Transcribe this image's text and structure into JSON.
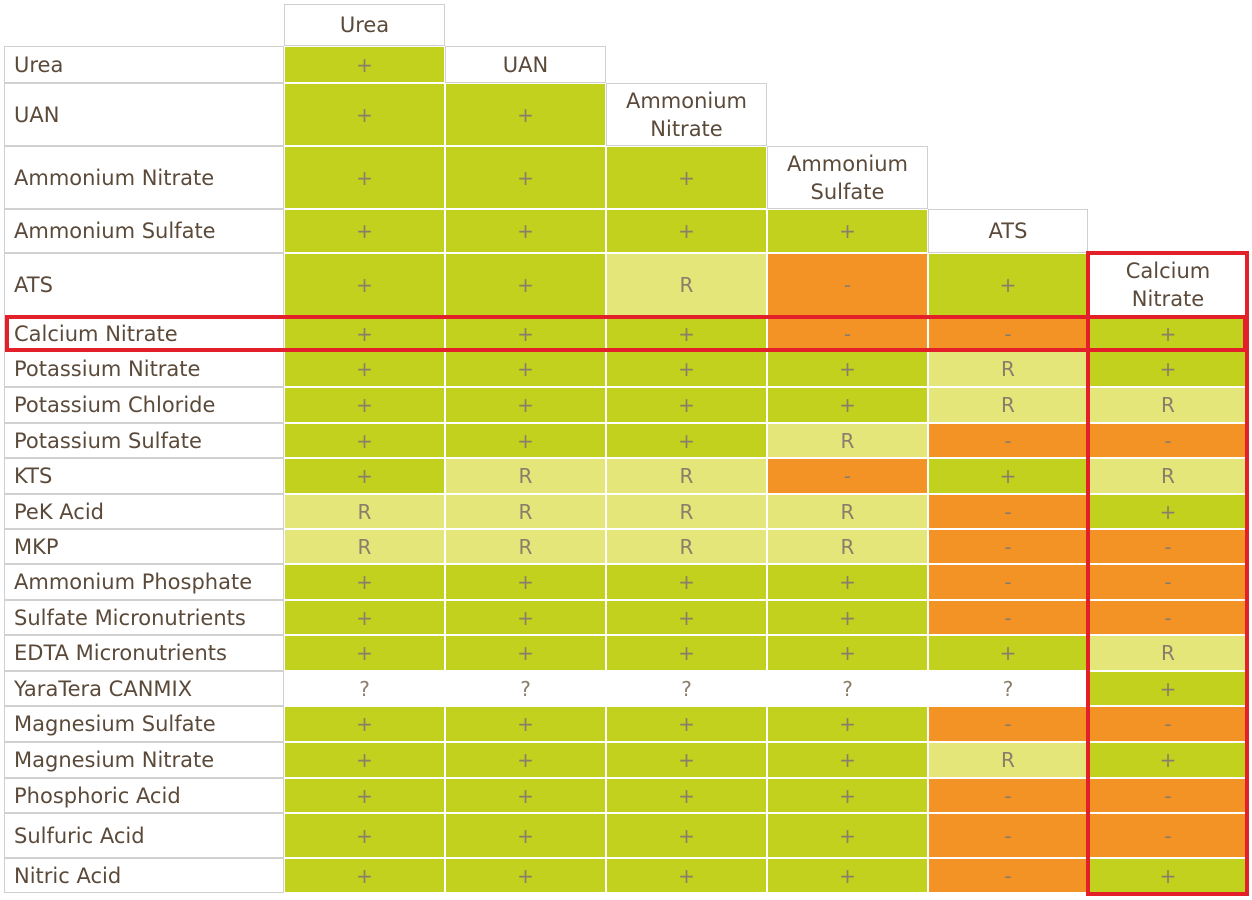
{
  "columns": [
    "Urea",
    "UAN",
    "Ammonium Nitrate",
    "Ammonium Sulfate",
    "ATS",
    "Calcium Nitrate"
  ],
  "colors": {
    "+": "#c2d01e",
    "R": "#e4e67a",
    "-": "#f39325",
    "?": "#ffffff"
  },
  "rows": [
    {
      "label": "Urea",
      "cells": [
        "+"
      ]
    },
    {
      "label": "UAN",
      "cells": [
        "+",
        "+"
      ]
    },
    {
      "label": "Ammonium Nitrate",
      "cells": [
        "+",
        "+",
        "+"
      ]
    },
    {
      "label": "Ammonium Sulfate",
      "cells": [
        "+",
        "+",
        "+",
        "+"
      ]
    },
    {
      "label": "ATS",
      "cells": [
        "+",
        "+",
        "R",
        "-",
        "+"
      ]
    },
    {
      "label": "Calcium Nitrate",
      "cells": [
        "+",
        "+",
        "+",
        "-",
        "-",
        "+"
      ]
    },
    {
      "label": "Potassium Nitrate",
      "cells": [
        "+",
        "+",
        "+",
        "+",
        "R",
        "+"
      ]
    },
    {
      "label": "Potassium Chloride",
      "cells": [
        "+",
        "+",
        "+",
        "+",
        "R",
        "R"
      ]
    },
    {
      "label": "Potassium Sulfate",
      "cells": [
        "+",
        "+",
        "+",
        "R",
        "-",
        "-"
      ]
    },
    {
      "label": "KTS",
      "cells": [
        "+",
        "R",
        "R",
        "-",
        "+",
        "R"
      ]
    },
    {
      "label": "PeK Acid",
      "cells": [
        "R",
        "R",
        "R",
        "R",
        "-",
        "+"
      ]
    },
    {
      "label": "MKP",
      "cells": [
        "R",
        "R",
        "R",
        "R",
        "-",
        "-"
      ]
    },
    {
      "label": "Ammonium Phosphate",
      "cells": [
        "+",
        "+",
        "+",
        "+",
        "-",
        "-"
      ]
    },
    {
      "label": "Sulfate Micronutrients",
      "cells": [
        "+",
        "+",
        "+",
        "+",
        "-",
        "-"
      ]
    },
    {
      "label": "EDTA Micronutrients",
      "cells": [
        "+",
        "+",
        "+",
        "+",
        "+",
        "R"
      ]
    },
    {
      "label": "YaraTera CANMIX",
      "cells": [
        "?",
        "?",
        "?",
        "?",
        "?",
        "+"
      ]
    },
    {
      "label": "Magnesium Sulfate",
      "cells": [
        "+",
        "+",
        "+",
        "+",
        "-",
        "-"
      ]
    },
    {
      "label": "Magnesium Nitrate",
      "cells": [
        "+",
        "+",
        "+",
        "+",
        "R",
        "+"
      ]
    },
    {
      "label": "Phosphoric Acid",
      "cells": [
        "+",
        "+",
        "+",
        "+",
        "-",
        "-"
      ]
    },
    {
      "label": "Sulfuric Acid",
      "cells": [
        "+",
        "+",
        "+",
        "+",
        "-",
        "-"
      ]
    },
    {
      "label": "Nitric Acid",
      "cells": [
        "+",
        "+",
        "+",
        "+",
        "-",
        "+"
      ]
    }
  ]
}
